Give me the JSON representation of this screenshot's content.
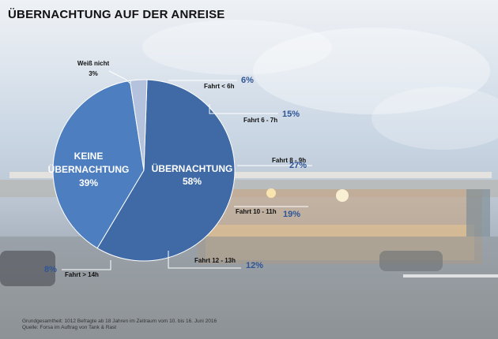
{
  "title": "ÜBERNACHTUNG AUF DER ANREISE",
  "footnote": {
    "line1": "Grundgesamtheit: 1012 Befragte ab 18 Jahren im Zeitraum vom 10. bis 16. Juni 2016",
    "line2": "Quelle: Forsa im Auftrag von Tank & Rast"
  },
  "colors": {
    "ubernachtung": "#3f6aa6",
    "keine": "#4d7ec0",
    "weiss_nicht": "#b4c2de",
    "value_text": "#2f5597"
  },
  "chart_data": {
    "type": "pie",
    "title": "ÜBERNACHTUNG AUF DER ANREISE",
    "slices": [
      {
        "label": "Übernachtung",
        "display": [
          "ÜBERNACHTUNG",
          "58%"
        ],
        "value": 58
      },
      {
        "label": "Keine Übernachtung",
        "display": [
          "KEINE",
          "ÜBERNACHTUNG",
          "39%"
        ],
        "value": 39
      },
      {
        "label": "Weiß nicht",
        "display": [
          "Weiß nicht",
          "3%"
        ],
        "value": 3
      }
    ],
    "breakdown": {
      "of": "Übernachtung",
      "items": [
        {
          "label": "Fahrt < 6h",
          "value": "6%"
        },
        {
          "label": "Fahrt 6 - 7h",
          "value": "15%"
        },
        {
          "label": "Fahrt 8 - 9h",
          "value": "27%"
        },
        {
          "label": "Fahrt 10 - 11h",
          "value": "19%"
        },
        {
          "label": "Fahrt 12 - 13h",
          "value": "12%"
        },
        {
          "label": "Fahrt > 14h",
          "value": "8%"
        }
      ]
    }
  }
}
